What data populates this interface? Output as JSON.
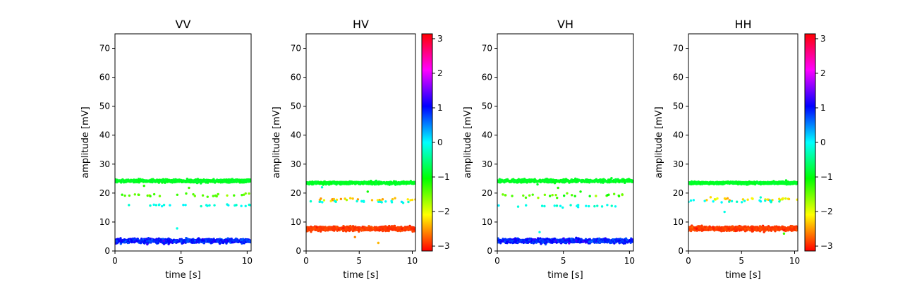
{
  "chart_data": [
    {
      "type": "scatter",
      "title": "VV",
      "xlabel": "time [s]",
      "ylabel": "amplitude [mV]",
      "xlim": [
        0,
        10.3
      ],
      "ylim": [
        0,
        75
      ],
      "xticks": [
        0,
        5,
        10
      ],
      "yticks": [
        0,
        10,
        20,
        30,
        40,
        50,
        60,
        70
      ],
      "colorbar": false,
      "bands": [
        {
          "y_center": 24.2,
          "y_spread": 0.5,
          "phase": -0.9,
          "phase_spread": 0.04,
          "count": 700,
          "x_range": [
            0,
            10.3
          ]
        },
        {
          "y_center": 3.5,
          "y_spread": 0.7,
          "phase": 0.95,
          "phase_spread": 0.15,
          "count": 800,
          "x_range": [
            0,
            10.3
          ]
        },
        {
          "y_center": 19.4,
          "y_spread": 0.6,
          "phase": -1.4,
          "phase_spread": 0.15,
          "count": 28,
          "x_range": [
            0,
            10.3
          ]
        },
        {
          "y_center": 15.8,
          "y_spread": 0.4,
          "phase": -0.1,
          "phase_spread": 0.1,
          "count": 24,
          "x_range": [
            0.5,
            10.3
          ]
        }
      ],
      "outliers": [
        {
          "x": 4.7,
          "y": 7.8,
          "phase": -0.1
        },
        {
          "x": 2.2,
          "y": 22.5,
          "phase": -1.2
        },
        {
          "x": 5.6,
          "y": 21.8,
          "phase": -1.3
        }
      ]
    },
    {
      "type": "scatter",
      "title": "HV",
      "xlabel": "time [s]",
      "ylabel": "amplitude [mV]",
      "xlim": [
        0,
        10.3
      ],
      "ylim": [
        0,
        75
      ],
      "xticks": [
        0,
        5,
        10
      ],
      "yticks": [
        0,
        10,
        20,
        30,
        40,
        50,
        60,
        70
      ],
      "colorbar": true,
      "bands": [
        {
          "y_center": 23.5,
          "y_spread": 0.4,
          "phase": -0.9,
          "phase_spread": 0.04,
          "count": 700,
          "x_range": [
            0,
            10.3
          ]
        },
        {
          "y_center": 7.7,
          "y_spread": 0.7,
          "phase": -2.9,
          "phase_spread": 0.06,
          "count": 800,
          "x_range": [
            0,
            10.3
          ]
        },
        {
          "y_center": 17.8,
          "y_spread": 0.5,
          "phase": -2.2,
          "phase_spread": 0.2,
          "count": 26,
          "x_range": [
            0,
            10.3
          ]
        },
        {
          "y_center": 17.0,
          "y_spread": 0.4,
          "phase": -0.1,
          "phase_spread": 0.1,
          "count": 20,
          "x_range": [
            0,
            10.3
          ]
        }
      ],
      "outliers": [
        {
          "x": 1.5,
          "y": 22.0,
          "phase": -0.2
        },
        {
          "x": 5.8,
          "y": 20.5,
          "phase": -1.1
        },
        {
          "x": 4.6,
          "y": 4.8,
          "phase": -2.6
        },
        {
          "x": 6.8,
          "y": 2.8,
          "phase": -2.4
        }
      ]
    },
    {
      "type": "scatter",
      "title": "VH",
      "xlabel": "time [s]",
      "ylabel": "amplitude [mV]",
      "xlim": [
        0,
        10.3
      ],
      "ylim": [
        0,
        75
      ],
      "xticks": [
        0,
        5,
        10
      ],
      "yticks": [
        0,
        10,
        20,
        30,
        40,
        50,
        60,
        70
      ],
      "colorbar": false,
      "bands": [
        {
          "y_center": 24.2,
          "y_spread": 0.5,
          "phase": -0.9,
          "phase_spread": 0.04,
          "count": 700,
          "x_range": [
            0,
            10.3
          ]
        },
        {
          "y_center": 3.5,
          "y_spread": 0.7,
          "phase": 0.95,
          "phase_spread": 0.15,
          "count": 800,
          "x_range": [
            0,
            10.3
          ]
        },
        {
          "y_center": 19.2,
          "y_spread": 0.7,
          "phase": -1.4,
          "phase_spread": 0.15,
          "count": 28,
          "x_range": [
            0,
            10.3
          ]
        },
        {
          "y_center": 15.6,
          "y_spread": 0.5,
          "phase": -0.1,
          "phase_spread": 0.1,
          "count": 22,
          "x_range": [
            0,
            10.3
          ]
        }
      ],
      "outliers": [
        {
          "x": 3.2,
          "y": 6.5,
          "phase": -0.1
        },
        {
          "x": 4.6,
          "y": 21.8,
          "phase": -1.2
        },
        {
          "x": 6.3,
          "y": 20.5,
          "phase": -1.1
        }
      ]
    },
    {
      "type": "scatter",
      "title": "HH",
      "xlabel": "time [s]",
      "ylabel": "amplitude [mV]",
      "xlim": [
        0,
        10.3
      ],
      "ylim": [
        0,
        75
      ],
      "xticks": [
        0,
        5,
        10
      ],
      "yticks": [
        0,
        10,
        20,
        30,
        40,
        50,
        60,
        70
      ],
      "colorbar": true,
      "bands": [
        {
          "y_center": 23.5,
          "y_spread": 0.4,
          "phase": -0.9,
          "phase_spread": 0.04,
          "count": 700,
          "x_range": [
            0,
            10.3
          ]
        },
        {
          "y_center": 7.7,
          "y_spread": 0.7,
          "phase": -2.9,
          "phase_spread": 0.06,
          "count": 800,
          "x_range": [
            0,
            10.3
          ]
        },
        {
          "y_center": 17.9,
          "y_spread": 0.5,
          "phase": -2.2,
          "phase_spread": 0.2,
          "count": 26,
          "x_range": [
            0,
            10.3
          ]
        },
        {
          "y_center": 17.2,
          "y_spread": 0.4,
          "phase": -0.1,
          "phase_spread": 0.1,
          "count": 18,
          "x_range": [
            0,
            10.3
          ]
        }
      ],
      "outliers": [
        {
          "x": 3.4,
          "y": 13.5,
          "phase": -0.1
        },
        {
          "x": 9.0,
          "y": 6.0,
          "phase": -1.3
        },
        {
          "x": 6.8,
          "y": 18.5,
          "phase": -0.2
        }
      ]
    }
  ],
  "colorbar": {
    "colormap": "hsv",
    "range": [
      -3.14159,
      3.14159
    ],
    "ticks": [
      -3,
      -2,
      -1,
      0,
      1,
      2,
      3
    ]
  }
}
